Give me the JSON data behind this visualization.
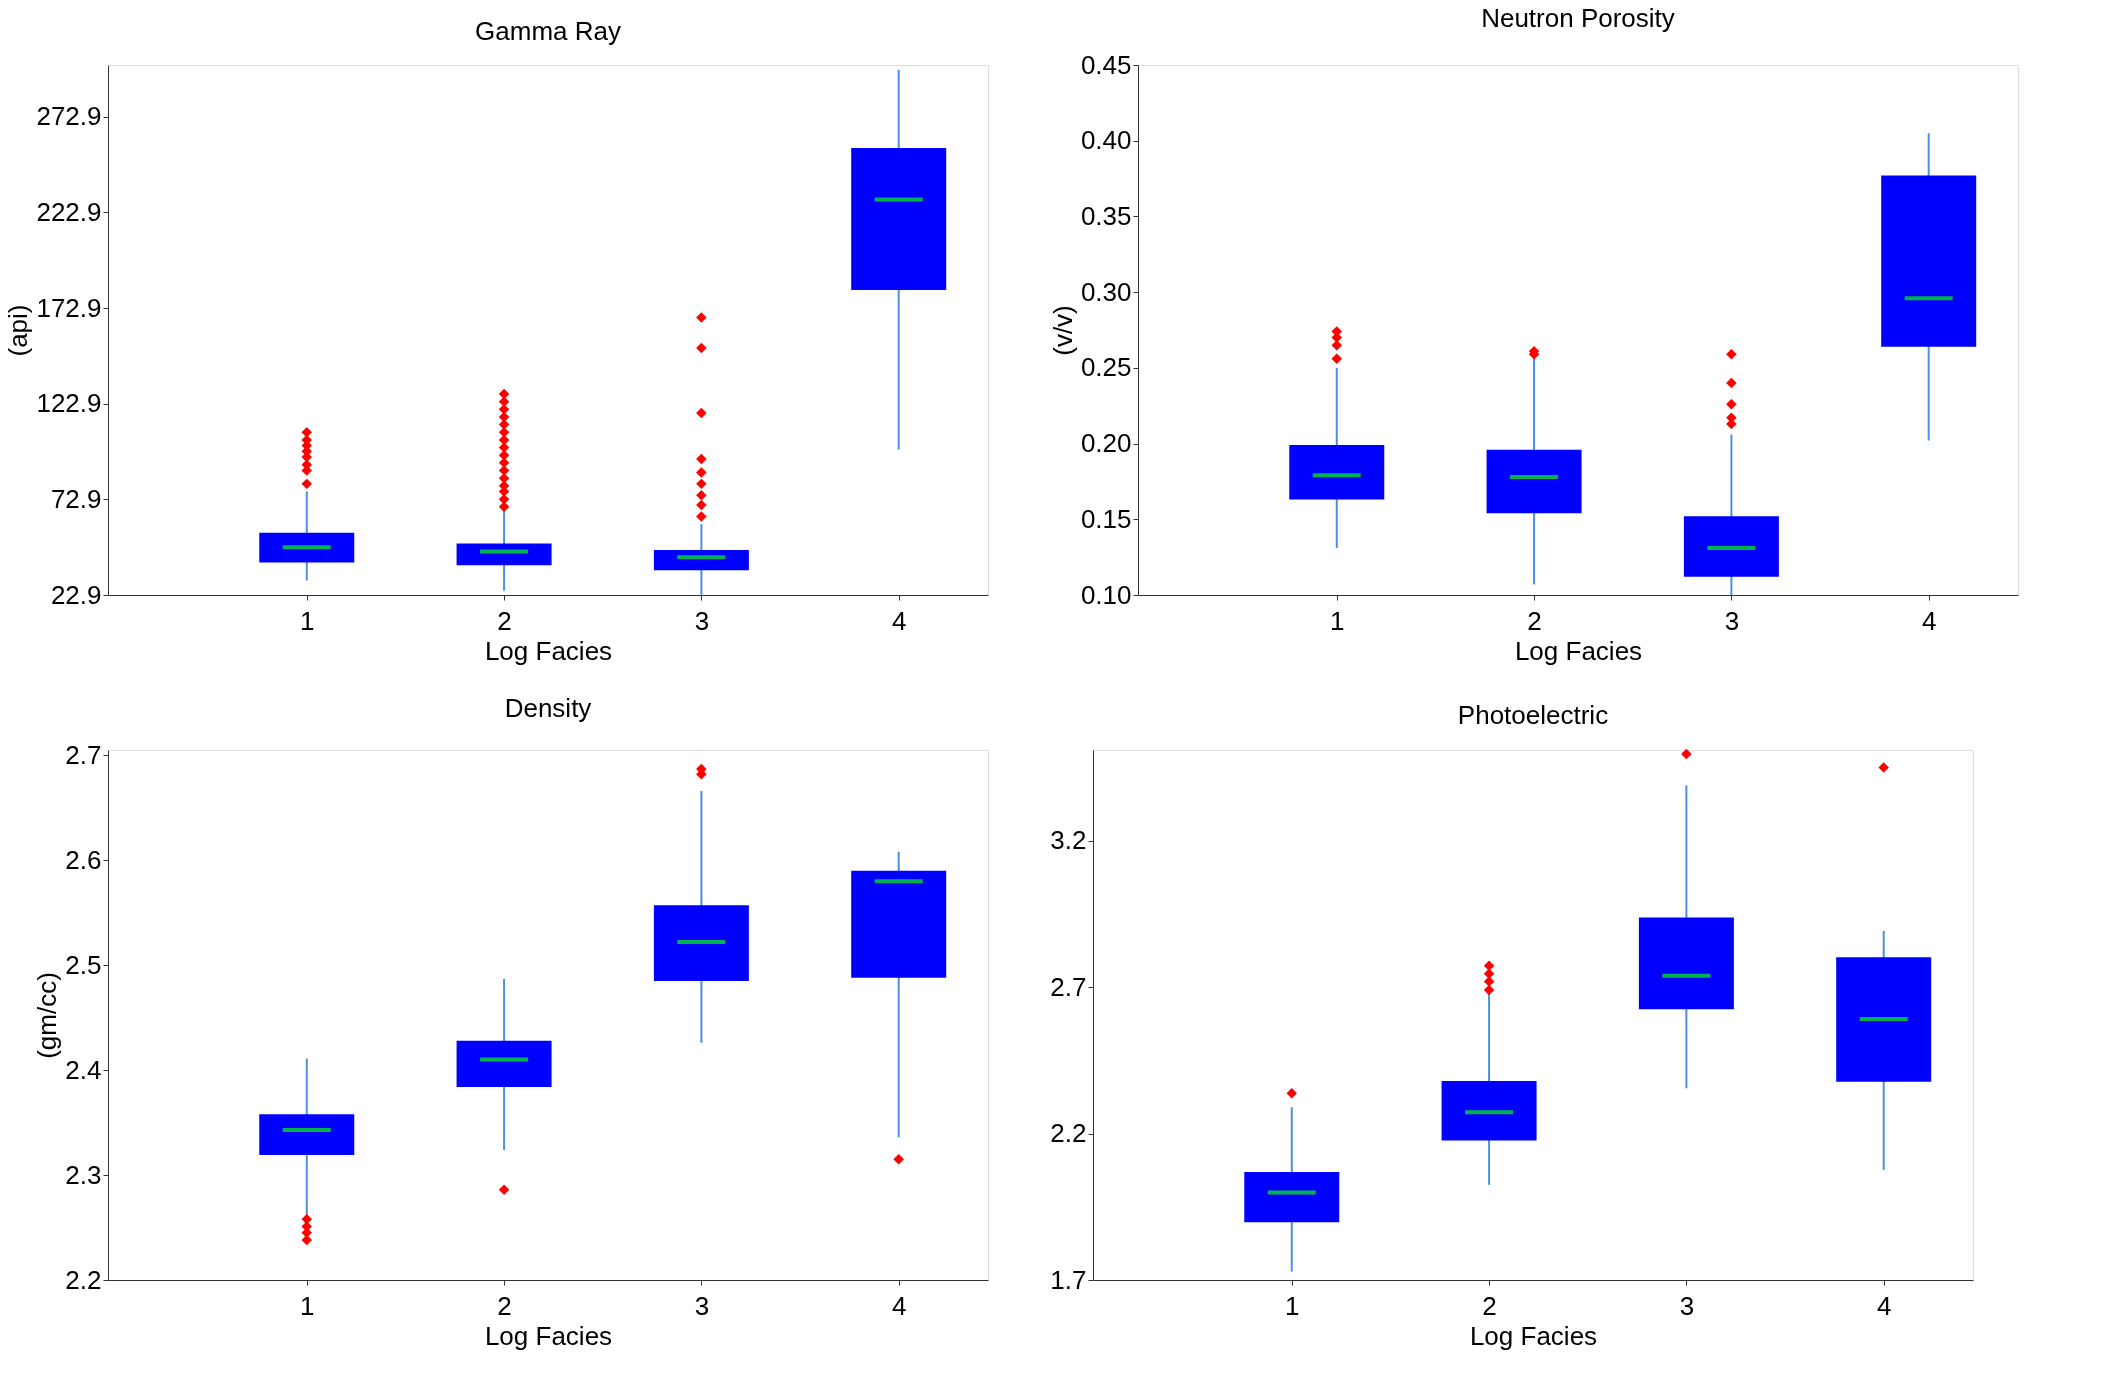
{
  "chart_data": [
    {
      "type": "box",
      "title": "Gamma Ray",
      "xlabel": "Log Facies",
      "ylabel": "(api)",
      "categories": [
        "1",
        "2",
        "3",
        "4"
      ],
      "ylim": [
        22.9,
        300
      ],
      "yticks": [
        22.9,
        72.9,
        122.9,
        172.9,
        222.9,
        272.9
      ],
      "grid": false,
      "series": [
        {
          "color": "#0000ff",
          "boxes": [
            {
              "low": 30.5,
              "q1": 39.9,
              "median": 47.9,
              "q3": 55.5,
              "high": 77,
              "outliers": [
                81,
                88,
                91,
                95,
                98,
                101,
                104,
                108
              ]
            },
            {
              "low": 25.2,
              "q1": 38.4,
              "median": 45.6,
              "q3": 49.8,
              "high": 67,
              "outliers": [
                69,
                73,
                77,
                80,
                84,
                88,
                92,
                96,
                100,
                104,
                108,
                112,
                116,
                120,
                124,
                128
              ]
            },
            {
              "low": 22.9,
              "q1": 35.8,
              "median": 42.6,
              "q3": 46.4,
              "high": 60,
              "outliers": [
                64,
                70,
                75,
                81,
                87,
                94,
                118,
                152,
                168
              ]
            },
            {
              "low": 99,
              "q1": 182.4,
              "median": 229.7,
              "q3": 256.6,
              "high": 297.5
            }
          ]
        }
      ]
    },
    {
      "type": "box",
      "title": "Neutron Porosity",
      "xlabel": "Log Facies",
      "ylabel": "(v/v)",
      "categories": [
        "1",
        "2",
        "3",
        "4"
      ],
      "ylim": [
        0.1,
        0.45
      ],
      "yticks": [
        {
          "value": 0.1,
          "label": "0.10"
        },
        {
          "value": 0.15,
          "label": "0.15"
        },
        {
          "value": 0.2,
          "label": "0.20"
        },
        {
          "value": 0.25,
          "label": "0.25"
        },
        {
          "value": 0.3,
          "label": "0.30"
        },
        {
          "value": 0.35,
          "label": "0.35"
        },
        {
          "value": 0.4,
          "label": "0.40"
        },
        {
          "value": 0.45,
          "label": "0.45"
        }
      ],
      "grid": false,
      "series": [
        {
          "color": "#0000ff",
          "boxes": [
            {
              "low": 0.131,
              "q1": 0.163,
              "median": 0.179,
              "q3": 0.199,
              "high": 0.25,
              "outliers": [
                0.256,
                0.265,
                0.27,
                0.274
              ]
            },
            {
              "low": 0.107,
              "q1": 0.154,
              "median": 0.178,
              "q3": 0.196,
              "high": 0.258,
              "outliers": [
                0.259,
                0.261
              ]
            },
            {
              "low": 0.1,
              "q1": 0.112,
              "median": 0.131,
              "q3": 0.152,
              "high": 0.206,
              "outliers": [
                0.213,
                0.217,
                0.226,
                0.24,
                0.259
              ]
            },
            {
              "low": 0.202,
              "q1": 0.264,
              "median": 0.296,
              "q3": 0.377,
              "high": 0.405
            }
          ]
        }
      ]
    },
    {
      "type": "box",
      "title": "Density",
      "xlabel": "Log Facies",
      "ylabel": "(gm/cc)",
      "categories": [
        "1",
        "2",
        "3",
        "4"
      ],
      "ylim": [
        2.2,
        2.705
      ],
      "yticks": [
        2.2,
        2.3,
        2.4,
        2.5,
        2.6,
        2.7
      ],
      "grid": false,
      "series": [
        {
          "color": "#0000ff",
          "boxes": [
            {
              "low": 2.262,
              "q1": 2.319,
              "median": 2.343,
              "q3": 2.358,
              "high": 2.411,
              "outliers": [
                2.238,
                2.245,
                2.251,
                2.258
              ]
            },
            {
              "low": 2.324,
              "q1": 2.384,
              "median": 2.41,
              "q3": 2.428,
              "high": 2.487,
              "outliers": [
                2.286
              ]
            },
            {
              "low": 2.426,
              "q1": 2.485,
              "median": 2.522,
              "q3": 2.557,
              "high": 2.666,
              "outliers": [
                2.682,
                2.687
              ]
            },
            {
              "low": 2.336,
              "q1": 2.488,
              "median": 2.58,
              "q3": 2.59,
              "high": 2.608,
              "outliers": [
                2.315
              ]
            }
          ]
        }
      ]
    },
    {
      "type": "box",
      "title": "Photoelectric",
      "xlabel": "Log Facies",
      "categories": [
        "1",
        "2",
        "3",
        "4"
      ],
      "ylim": [
        1.7,
        3.51
      ],
      "yticks": [
        1.7,
        2.2,
        2.7,
        3.2
      ],
      "grid": false,
      "series": [
        {
          "color": "#0000ff",
          "boxes": [
            {
              "low": 1.729,
              "q1": 1.897,
              "median": 1.999,
              "q3": 2.069,
              "high": 2.29,
              "outliers": [
                2.338
              ]
            },
            {
              "low": 2.025,
              "q1": 2.176,
              "median": 2.273,
              "q3": 2.38,
              "high": 2.678,
              "outliers": [
                2.69,
                2.719,
                2.746,
                2.773
              ]
            },
            {
              "low": 2.355,
              "q1": 2.625,
              "median": 2.739,
              "q3": 2.938,
              "high": 3.389,
              "outliers": [
                3.496
              ]
            },
            {
              "low": 2.076,
              "q1": 2.377,
              "median": 2.591,
              "q3": 2.802,
              "high": 2.892,
              "outliers": [
                3.45
              ]
            }
          ]
        }
      ]
    }
  ]
}
